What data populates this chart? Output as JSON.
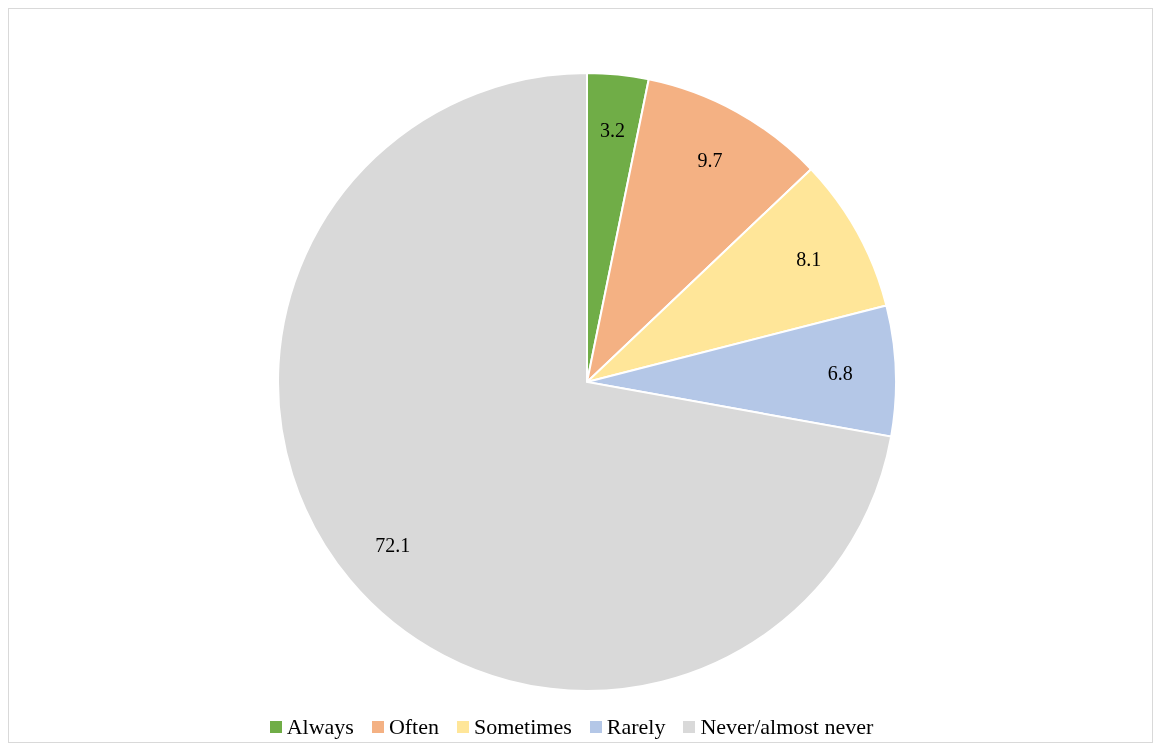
{
  "chart_data": {
    "type": "pie",
    "categories": [
      "Always",
      "Often",
      "Sometimes",
      "Rarely",
      "Never/almost never"
    ],
    "values": [
      3.2,
      9.7,
      8.1,
      6.8,
      72.1
    ],
    "colors": [
      "#70ad47",
      "#f4b183",
      "#ffe699",
      "#b4c7e7",
      "#d9d9d9"
    ],
    "data_labels": true,
    "legend": "bottom"
  }
}
